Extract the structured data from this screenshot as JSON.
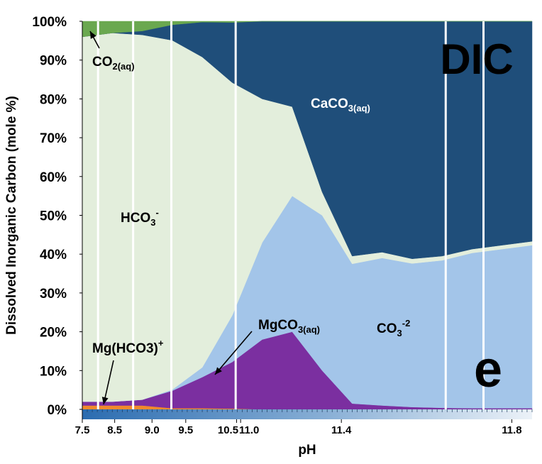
{
  "chart_data": {
    "type": "area",
    "stacking": "percent",
    "xlabel": "pH",
    "ylabel": "Dissolved Inorganic Carbon (mole %)",
    "ylim": [
      0,
      100
    ],
    "y_ticks": [
      "0%",
      "10%",
      "20%",
      "30%",
      "40%",
      "50%",
      "60%",
      "70%",
      "80%",
      "90%",
      "100%"
    ],
    "x_ticks": [
      "7.5",
      "8.5",
      "9.0",
      "9.5",
      "10.5",
      "11.0",
      "11.4",
      "11.8"
    ],
    "panel_title": "DIC",
    "panel_letter": "e",
    "grid": false,
    "legend": "none",
    "series": [
      {
        "key": "mghco3",
        "color": "#f08a2c",
        "label": "Mg(HCO3)",
        "sup": "+",
        "values": [
          1.0,
          1.0,
          1.0,
          0.3,
          0.3,
          0.2,
          0.0,
          0.0,
          0.0,
          0.0,
          0.0,
          0.0,
          0.0,
          0.0,
          0.0,
          0.0
        ]
      },
      {
        "key": "mgco3",
        "color": "#7b2fa0",
        "label": "MgCO",
        "sub": "3(aq)",
        "values": [
          1.0,
          1.0,
          1.5,
          4.5,
          8.0,
          12.0,
          18.0,
          20.0,
          10.0,
          1.5,
          1.0,
          0.6,
          0.4,
          0.3,
          0.3,
          0.3
        ]
      },
      {
        "key": "co3",
        "color": "#a3c5e9",
        "label": "CO",
        "sub": "3",
        "sup": "-2",
        "values": [
          0.0,
          0.0,
          0.0,
          0.3,
          2.5,
          12.0,
          25.0,
          35.0,
          40.0,
          36.0,
          38.0,
          37.0,
          38.0,
          40.0,
          41.0,
          42.0
        ]
      },
      {
        "key": "hco3",
        "color": "#e3eedc",
        "label": "HCO",
        "sub": "3",
        "sup": "-",
        "values": [
          94.0,
          95.0,
          94.0,
          90.0,
          80.0,
          60.0,
          37.0,
          23.0,
          6.0,
          2.0,
          1.5,
          1.2,
          1.1,
          1.0,
          1.0,
          1.0
        ]
      },
      {
        "key": "caco3",
        "color": "#1f4e7a",
        "label": "CaCO",
        "sub": "3(aq)",
        "values": [
          0.0,
          0.0,
          1.0,
          4.0,
          9.0,
          15.5,
          20.0,
          22.0,
          44.0,
          60.5,
          59.5,
          61.2,
          60.5,
          58.7,
          57.7,
          56.7
        ]
      },
      {
        "key": "co2",
        "color": "#6aa84f",
        "label": "CO",
        "sub": "2(aq)",
        "values": [
          4.0,
          3.0,
          2.5,
          1.0,
          0.2,
          0.3,
          0.0,
          0.0,
          0.0,
          0.0,
          0.0,
          0.0,
          0.0,
          0.0,
          0.0,
          0.0
        ]
      }
    ]
  }
}
